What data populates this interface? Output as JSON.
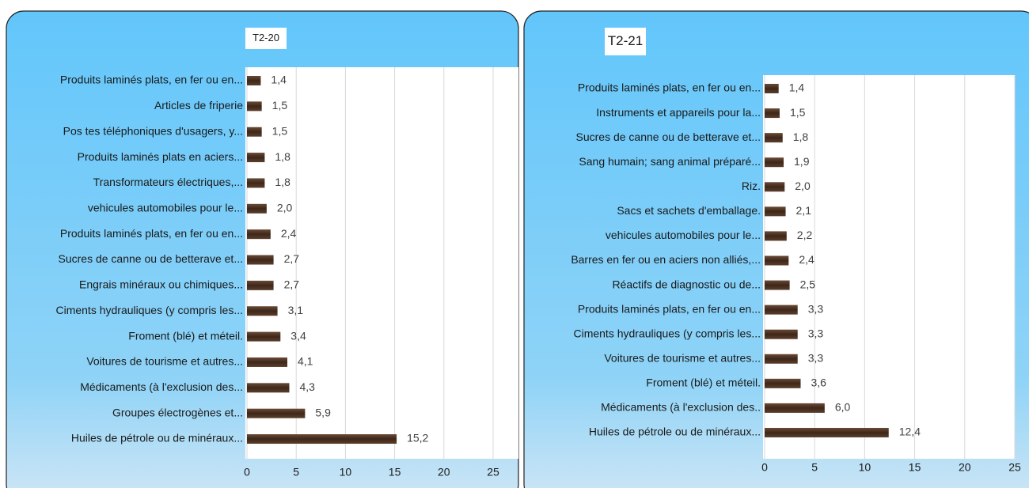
{
  "chart_data": [
    {
      "type": "bar",
      "orientation": "horizontal",
      "title": "T2-20",
      "categories": [
        "Produits laminés plats, en fer ou en...",
        "Articles de friperie",
        "Pos tes téléphoniques d'usagers, y...",
        "Produits laminés plats en aciers...",
        "Transformateurs électriques,...",
        "vehicules automobiles pour le...",
        "Produits laminés plats, en fer ou en...",
        "Sucres de canne ou de betterave et...",
        "Engrais minéraux ou chimiques...",
        "Ciments hydrauliques (y compris les...",
        "Froment (blé) et méteil.",
        "Voitures de tourisme et autres...",
        "Médicaments (à l'exclusion des...",
        "Groupes électrogènes et...",
        "Huiles de pétrole ou de minéraux..."
      ],
      "values": [
        1.4,
        1.5,
        1.5,
        1.8,
        1.8,
        2.0,
        2.4,
        2.7,
        2.7,
        3.1,
        3.4,
        4.1,
        4.3,
        5.9,
        15.2
      ],
      "value_labels": [
        "1,4",
        "1,5",
        "1,5",
        "1,8",
        "1,8",
        "2,0",
        "2,4",
        "2,7",
        "2,7",
        "3,1",
        "3,4",
        "4,1",
        "4,3",
        "5,9",
        "15,2"
      ],
      "color": "#4a2f20",
      "xlim": [
        0,
        25
      ],
      "xticks": [
        0,
        5,
        10,
        15,
        20,
        25
      ],
      "grid": true
    },
    {
      "type": "bar",
      "orientation": "horizontal",
      "title": "T2-21",
      "categories": [
        "Produits laminés plats, en fer ou en...",
        "Instruments et appareils pour la...",
        "Sucres de canne ou de betterave et...",
        "Sang humain; sang animal préparé...",
        "Riz.",
        "Sacs et sachets d'emballage.",
        "vehicules automobiles pour le...",
        "Barres en fer ou en aciers non alliés,...",
        "Réactifs de diagnostic ou de...",
        "Produits laminés plats, en fer ou en...",
        "Ciments hydrauliques (y compris les...",
        "Voitures de tourisme et autres...",
        "Froment (blé) et méteil.",
        "Médicaments (à l'exclusion des..",
        "Huiles de pétrole ou de minéraux..."
      ],
      "values": [
        1.4,
        1.5,
        1.8,
        1.9,
        2.0,
        2.1,
        2.2,
        2.4,
        2.5,
        3.3,
        3.3,
        3.3,
        3.6,
        6.0,
        12.4
      ],
      "value_labels": [
        "1,4",
        "1,5",
        "1,8",
        "1,9",
        "2,0",
        "2,1",
        "2,2",
        "2,4",
        "2,5",
        "3,3",
        "3,3",
        "3,3",
        "3,6",
        "6,0",
        "12,4"
      ],
      "color": "#4a2f20",
      "xlim": [
        0,
        25
      ],
      "xticks": [
        0,
        5,
        10,
        15,
        20,
        25
      ],
      "grid": true
    }
  ]
}
